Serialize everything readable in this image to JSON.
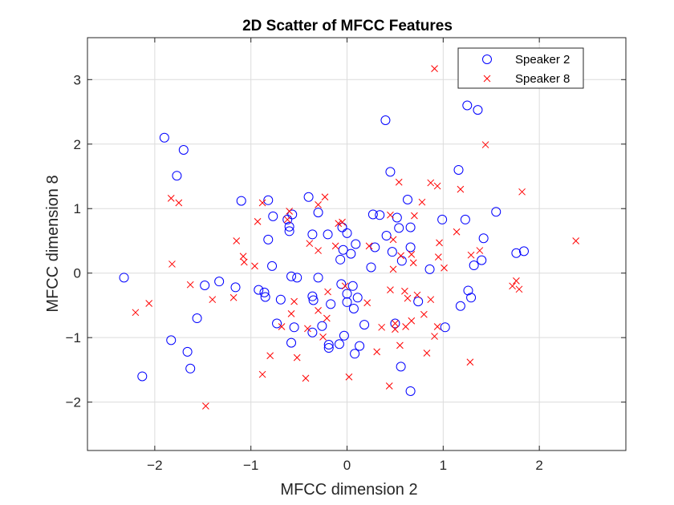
{
  "chart_data": {
    "type": "scatter",
    "title": "2D Scatter of MFCC Features",
    "xlabel": "MFCC dimension 2",
    "ylabel": "MFCC dimension 8",
    "xlim": [
      -2.7,
      2.9
    ],
    "ylim": [
      -2.75,
      3.65
    ],
    "xticks": [
      -2,
      -1,
      0,
      1,
      2
    ],
    "yticks": [
      -2,
      -1,
      0,
      1,
      2,
      3
    ],
    "grid": true,
    "legend_position": "top-right",
    "series": [
      {
        "name": "Speaker 2",
        "marker": "circle",
        "color": "#0000ff",
        "points": [
          [
            -2.32,
            -0.07
          ],
          [
            -2.13,
            -1.6
          ],
          [
            -1.9,
            2.1
          ],
          [
            -1.83,
            -1.04
          ],
          [
            -1.77,
            1.51
          ],
          [
            -1.7,
            1.91
          ],
          [
            -1.66,
            -1.22
          ],
          [
            -1.63,
            -1.48
          ],
          [
            -1.56,
            -0.7
          ],
          [
            -1.48,
            -0.19
          ],
          [
            -1.33,
            -0.13
          ],
          [
            -1.16,
            -0.22
          ],
          [
            -1.1,
            1.12
          ],
          [
            -0.92,
            -0.26
          ],
          [
            -0.86,
            -0.3
          ],
          [
            -0.85,
            -0.37
          ],
          [
            -0.82,
            1.13
          ],
          [
            -0.82,
            0.52
          ],
          [
            -0.78,
            0.11
          ],
          [
            -0.77,
            0.88
          ],
          [
            -0.73,
            -0.78
          ],
          [
            -0.69,
            -0.41
          ],
          [
            -0.62,
            0.83
          ],
          [
            -0.6,
            0.65
          ],
          [
            -0.6,
            0.72
          ],
          [
            -0.58,
            -0.05
          ],
          [
            -0.55,
            -0.84
          ],
          [
            -0.52,
            -0.07
          ],
          [
            -0.57,
            0.91
          ],
          [
            -0.58,
            -1.08
          ],
          [
            -0.4,
            1.18
          ],
          [
            -0.36,
            0.6
          ],
          [
            -0.36,
            -0.36
          ],
          [
            -0.36,
            -0.92
          ],
          [
            -0.35,
            -0.42
          ],
          [
            -0.3,
            -0.07
          ],
          [
            -0.3,
            0.94
          ],
          [
            -0.26,
            -0.82
          ],
          [
            -0.2,
            0.6
          ],
          [
            -0.19,
            -1.16
          ],
          [
            -0.19,
            -1.11
          ],
          [
            -0.17,
            -0.48
          ],
          [
            -0.08,
            -1.1
          ],
          [
            -0.07,
            0.21
          ],
          [
            -0.06,
            -0.17
          ],
          [
            -0.05,
            0.71
          ],
          [
            -0.03,
            -0.97
          ],
          [
            -0.04,
            0.36
          ],
          [
            0.0,
            -0.32
          ],
          [
            0.0,
            -0.45
          ],
          [
            0.0,
            0.62
          ],
          [
            0.04,
            0.3
          ],
          [
            0.06,
            -0.2
          ],
          [
            0.07,
            -0.55
          ],
          [
            0.09,
            0.45
          ],
          [
            0.11,
            -0.38
          ],
          [
            0.13,
            -1.13
          ],
          [
            0.08,
            -1.25
          ],
          [
            0.18,
            -0.8
          ],
          [
            0.25,
            0.09
          ],
          [
            0.27,
            0.91
          ],
          [
            0.29,
            0.4
          ],
          [
            0.34,
            0.9
          ],
          [
            0.41,
            0.58
          ],
          [
            0.45,
            1.57
          ],
          [
            0.47,
            0.33
          ],
          [
            0.5,
            -0.78
          ],
          [
            0.52,
            0.86
          ],
          [
            0.54,
            0.7
          ],
          [
            0.56,
            -1.45
          ],
          [
            0.57,
            0.19
          ],
          [
            0.63,
            1.14
          ],
          [
            0.66,
            0.71
          ],
          [
            0.66,
            0.4
          ],
          [
            0.66,
            -1.83
          ],
          [
            0.74,
            -0.44
          ],
          [
            0.86,
            0.06
          ],
          [
            0.99,
            0.83
          ],
          [
            1.02,
            -0.84
          ],
          [
            1.16,
            1.6
          ],
          [
            1.18,
            -0.51
          ],
          [
            1.23,
            0.83
          ],
          [
            1.26,
            -0.27
          ],
          [
            1.25,
            2.6
          ],
          [
            1.29,
            -0.38
          ],
          [
            1.32,
            0.12
          ],
          [
            1.36,
            2.53
          ],
          [
            1.4,
            0.2
          ],
          [
            1.42,
            0.54
          ],
          [
            1.55,
            0.95
          ],
          [
            1.76,
            0.31
          ],
          [
            1.84,
            0.34
          ],
          [
            0.4,
            2.37
          ]
        ]
      },
      {
        "name": "Speaker 8",
        "marker": "x",
        "color": "#ff0000",
        "points": [
          [
            -2.2,
            -0.61
          ],
          [
            -2.06,
            -0.47
          ],
          [
            -1.83,
            1.16
          ],
          [
            -1.82,
            0.14
          ],
          [
            -1.75,
            1.09
          ],
          [
            -1.63,
            -0.18
          ],
          [
            -1.47,
            -2.06
          ],
          [
            -1.4,
            -0.41
          ],
          [
            -1.18,
            -0.38
          ],
          [
            -1.15,
            0.5
          ],
          [
            -1.08,
            0.26
          ],
          [
            -1.07,
            0.17
          ],
          [
            -0.96,
            0.11
          ],
          [
            -0.93,
            0.8
          ],
          [
            -0.88,
            -1.57
          ],
          [
            -0.88,
            1.09
          ],
          [
            -0.8,
            -1.28
          ],
          [
            -0.68,
            -0.83
          ],
          [
            -0.62,
            0.83
          ],
          [
            -0.6,
            0.96
          ],
          [
            -0.58,
            -0.63
          ],
          [
            -0.55,
            -0.44
          ],
          [
            -0.52,
            -1.31
          ],
          [
            -0.43,
            -1.63
          ],
          [
            -0.41,
            -0.86
          ],
          [
            -0.39,
            0.46
          ],
          [
            -0.3,
            -0.58
          ],
          [
            -0.3,
            1.06
          ],
          [
            -0.25,
            -0.99
          ],
          [
            -0.23,
            1.18
          ],
          [
            -0.21,
            -0.7
          ],
          [
            -0.2,
            -0.29
          ],
          [
            -0.12,
            0.42
          ],
          [
            -0.09,
            0.77
          ],
          [
            -0.05,
            0.79
          ],
          [
            -0.02,
            -0.2
          ],
          [
            0.02,
            -1.61
          ],
          [
            0.21,
            -0.46
          ],
          [
            0.23,
            0.42
          ],
          [
            0.31,
            -1.22
          ],
          [
            0.36,
            -0.84
          ],
          [
            0.44,
            -1.75
          ],
          [
            0.45,
            0.9
          ],
          [
            0.45,
            -0.26
          ],
          [
            0.48,
            0.06
          ],
          [
            0.48,
            0.52
          ],
          [
            0.5,
            -0.87
          ],
          [
            0.5,
            -0.78
          ],
          [
            0.54,
            1.41
          ],
          [
            0.55,
            -1.12
          ],
          [
            0.56,
            0.27
          ],
          [
            0.6,
            -0.28
          ],
          [
            0.61,
            -0.83
          ],
          [
            0.63,
            -0.39
          ],
          [
            0.67,
            0.29
          ],
          [
            0.67,
            -0.74
          ],
          [
            0.69,
            0.16
          ],
          [
            0.7,
            0.89
          ],
          [
            0.73,
            -0.34
          ],
          [
            0.78,
            1.1
          ],
          [
            0.8,
            -0.64
          ],
          [
            0.83,
            -1.24
          ],
          [
            0.87,
            -0.41
          ],
          [
            0.87,
            1.4
          ],
          [
            0.91,
            -0.98
          ],
          [
            0.91,
            3.17
          ],
          [
            0.94,
            -0.83
          ],
          [
            0.94,
            1.35
          ],
          [
            0.96,
            0.47
          ],
          [
            1.01,
            0.08
          ],
          [
            1.14,
            0.64
          ],
          [
            1.18,
            1.3
          ],
          [
            1.28,
            -1.38
          ],
          [
            1.29,
            0.28
          ],
          [
            1.38,
            0.35
          ],
          [
            1.44,
            1.99
          ],
          [
            1.72,
            -0.2
          ],
          [
            1.76,
            -0.12
          ],
          [
            1.79,
            -0.25
          ],
          [
            1.82,
            1.26
          ],
          [
            2.38,
            0.5
          ],
          [
            0.95,
            0.25
          ],
          [
            -0.3,
            0.35
          ]
        ]
      }
    ]
  }
}
